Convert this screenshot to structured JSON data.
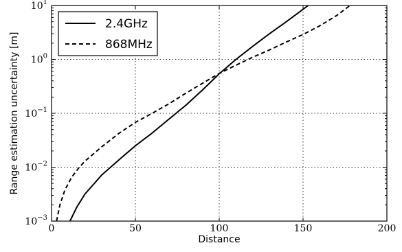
{
  "chart_data": {
    "type": "line",
    "title": "",
    "xlabel": "Distance",
    "ylabel": "Range estimation uncertainty [m]",
    "xlim": [
      0,
      200
    ],
    "ylim": [
      0.001,
      10
    ],
    "yscale": "log",
    "grid": true,
    "legend_position": "top-left",
    "x_ticks": [
      "0",
      "50",
      "100",
      "150",
      "200"
    ],
    "x_tick_values": [
      0,
      50,
      100,
      150,
      200
    ],
    "y_ticks": [
      {
        "base": "10",
        "exp": "−3",
        "value": 0.001
      },
      {
        "base": "10",
        "exp": "−2",
        "value": 0.01
      },
      {
        "base": "10",
        "exp": "−1",
        "value": 0.1
      },
      {
        "base": "10",
        "exp": "0",
        "value": 1
      },
      {
        "base": "10",
        "exp": "1",
        "value": 10
      }
    ],
    "series": [
      {
        "name": "2.4GHz",
        "style": "solid",
        "color": "#000000",
        "x": [
          11,
          15,
          20,
          30,
          40,
          50,
          60,
          70,
          80,
          90,
          100,
          110,
          120,
          130,
          140,
          150,
          153
        ],
        "y": [
          0.001,
          0.0018,
          0.0032,
          0.0072,
          0.0135,
          0.025,
          0.043,
          0.078,
          0.14,
          0.27,
          0.54,
          1.0,
          1.75,
          3.0,
          5.0,
          8.5,
          10
        ]
      },
      {
        "name": "868MHz",
        "style": "dashed",
        "color": "#000000",
        "x": [
          3,
          5,
          8,
          12,
          16,
          20,
          30,
          40,
          50,
          60,
          70,
          80,
          90,
          100,
          110,
          120,
          130,
          140,
          150,
          160,
          170,
          178
        ],
        "y": [
          0.001,
          0.002,
          0.0038,
          0.0065,
          0.0095,
          0.013,
          0.024,
          0.042,
          0.068,
          0.1,
          0.15,
          0.235,
          0.36,
          0.55,
          0.78,
          1.1,
          1.5,
          2.1,
          2.9,
          4.2,
          6.5,
          10
        ]
      }
    ]
  }
}
